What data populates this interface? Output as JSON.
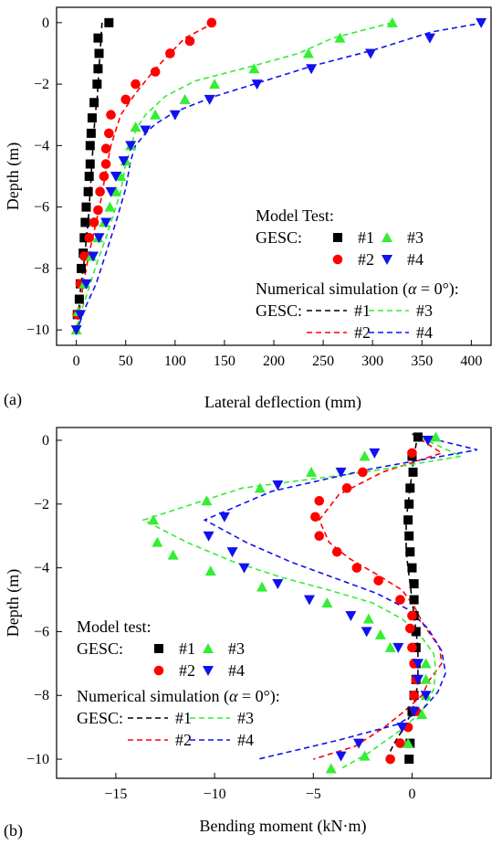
{
  "panels": [
    {
      "panel_label": "(a)",
      "legend": {
        "test_title": "Model Test:",
        "sim_title_prefix": "Numerical simulation (",
        "sim_title_alpha": "α",
        "sim_title_suffix": " = 0°):",
        "row_label": "GESC:",
        "entries": [
          "#1",
          "#2",
          "#3",
          "#4"
        ]
      }
    },
    {
      "panel_label": "(b)",
      "legend": {
        "test_title": "Model test:",
        "sim_title_prefix": "Numerical simulation (",
        "sim_title_alpha": "α",
        "sim_title_suffix": " = 0°):",
        "row_label": "GESC:",
        "entries": [
          "#1",
          "#2",
          "#3",
          "#4"
        ]
      }
    }
  ],
  "series_colors": {
    "#1": "#000000",
    "#2": "#ff0000",
    "#3": "#33ee33",
    "#4": "#1111ee"
  },
  "series_markers": {
    "#1": "square",
    "#2": "circle",
    "#3": "triangle-up",
    "#4": "triangle-down"
  },
  "chart_data": [
    {
      "type": "scatter",
      "title": "",
      "xlabel": "Lateral deflection (mm)",
      "ylabel": "Depth (m)",
      "xlim": [
        -20,
        420
      ],
      "ylim": [
        -10.5,
        0.5
      ],
      "xticks": [
        0,
        50,
        100,
        150,
        200,
        250,
        300,
        350,
        400
      ],
      "yticks": [
        0,
        -2,
        -4,
        -6,
        -8,
        -10
      ],
      "grid": false,
      "legend_position": "bottom-right",
      "test_series": [
        {
          "name": "#1",
          "x": [
            33,
            22,
            23,
            22,
            21,
            18,
            16,
            15,
            14,
            14,
            13,
            12,
            10,
            9,
            8,
            7,
            5,
            4,
            3,
            1
          ],
          "y": [
            0,
            -0.5,
            -1,
            -1.5,
            -2,
            -2.6,
            -3.1,
            -3.6,
            -4,
            -4.6,
            -5,
            -5.5,
            -6,
            -6.5,
            -7,
            -7.5,
            -8,
            -8.5,
            -9,
            -9.5
          ]
        },
        {
          "name": "#2",
          "x": [
            137,
            115,
            95,
            80,
            60,
            50,
            35,
            33,
            30,
            30,
            28,
            24,
            22,
            18,
            13,
            8,
            4,
            1
          ],
          "y": [
            0,
            -0.6,
            -1,
            -1.6,
            -2,
            -2.5,
            -3,
            -3.6,
            -4.1,
            -4.6,
            -5,
            -5.5,
            -6.1,
            -6.5,
            -7,
            -7.6,
            -8.5,
            -9.5
          ]
        },
        {
          "name": "#3",
          "x": [
            320,
            267,
            235,
            180,
            140,
            110,
            80,
            60,
            55,
            50,
            45,
            40,
            34,
            28,
            22,
            15,
            8,
            2,
            0
          ],
          "y": [
            0,
            -0.5,
            -1,
            -1.5,
            -2,
            -2.5,
            -3,
            -3.4,
            -4,
            -4.5,
            -5,
            -5.5,
            -6,
            -6.5,
            -7,
            -7.6,
            -8.5,
            -9.4,
            -10
          ]
        },
        {
          "name": "#4",
          "x": [
            410,
            358,
            298,
            238,
            183,
            135,
            100,
            70,
            55,
            48,
            40,
            35,
            30,
            23,
            17,
            10,
            4,
            0
          ],
          "y": [
            0,
            -0.5,
            -1,
            -1.5,
            -2,
            -2.5,
            -3,
            -3.5,
            -4,
            -4.5,
            -5,
            -5.5,
            -6.5,
            -7,
            -7.6,
            -8.5,
            -9.5,
            -10
          ]
        }
      ],
      "simulation_series": [
        {
          "name": "#1",
          "x": [
            26,
            25,
            24,
            23,
            22,
            21,
            19,
            18,
            17,
            16,
            15,
            14,
            12,
            10,
            9,
            7,
            5,
            3,
            2
          ],
          "y": [
            0,
            -0.5,
            -1,
            -1.5,
            -2,
            -2.5,
            -3,
            -3.5,
            -4,
            -4.5,
            -5,
            -5.5,
            -6.5,
            -7,
            -7.5,
            -8,
            -8.5,
            -9,
            -10
          ]
        },
        {
          "name": "#2",
          "x": [
            140,
            110,
            80,
            60,
            45,
            40,
            35,
            32,
            29,
            26,
            20,
            13,
            7,
            3,
            0
          ],
          "y": [
            0,
            -0.5,
            -1.5,
            -2.3,
            -3,
            -3.5,
            -4,
            -4.5,
            -5,
            -5.6,
            -6.5,
            -7.5,
            -8.5,
            -9.4,
            -10
          ]
        },
        {
          "name": "#3",
          "x": [
            320,
            260,
            225,
            180,
            120,
            90,
            70,
            60,
            55,
            50,
            45,
            40,
            30,
            20,
            10,
            3,
            0
          ],
          "y": [
            0,
            -0.5,
            -1,
            -1.4,
            -1.9,
            -2.4,
            -3,
            -3.5,
            -4.1,
            -4.6,
            -5.5,
            -6,
            -7,
            -7.9,
            -8.9,
            -9.6,
            -10
          ]
        },
        {
          "name": "#4",
          "x": [
            413,
            360,
            300,
            240,
            180,
            140,
            100,
            80,
            70,
            60,
            55,
            50,
            40,
            30,
            20,
            10,
            3,
            0
          ],
          "y": [
            0,
            -0.3,
            -0.9,
            -1.4,
            -2,
            -2.4,
            -2.9,
            -3.3,
            -3.6,
            -4,
            -4.5,
            -5.4,
            -6.5,
            -7.5,
            -8.5,
            -9.2,
            -9.8,
            -10
          ]
        }
      ]
    },
    {
      "type": "scatter",
      "title": "",
      "xlabel": "Bending moment (kN·m)",
      "ylabel": "Depth (m)",
      "xlim": [
        -18,
        4
      ],
      "ylim": [
        -10.6,
        0.4
      ],
      "xticks": [
        -15,
        -10,
        -5,
        0
      ],
      "yticks": [
        0,
        -2,
        -4,
        -6,
        -8,
        -10
      ],
      "grid": false,
      "legend_position": "bottom-left",
      "test_series": [
        {
          "name": "#1",
          "x": [
            0.3,
            0,
            0.05,
            -0.1,
            -0.15,
            -0.2,
            -0.15,
            -0.1,
            0,
            0.1,
            0.1,
            0.1,
            0.2,
            0.2,
            0.2,
            0.2,
            0.1,
            0,
            -0.1,
            -0.15
          ],
          "y": [
            0.1,
            -0.5,
            -1,
            -1.5,
            -2,
            -2.5,
            -3,
            -3.5,
            -4,
            -4.5,
            -5,
            -5.5,
            -6,
            -6.5,
            -7,
            -7.5,
            -8,
            -8.5,
            -9.5,
            -10
          ]
        },
        {
          "name": "#2",
          "x": [
            0,
            -2.5,
            -3.3,
            -4.7,
            -4.9,
            -4.7,
            -3.8,
            -2.8,
            -1.7,
            -0.6,
            0,
            -0.1,
            0,
            0.1,
            0.2,
            0.1,
            0.2,
            -0.2,
            -0.6,
            -1.1
          ],
          "y": [
            -0.4,
            -1,
            -1.5,
            -1.9,
            -2.4,
            -3,
            -3.5,
            -4,
            -4.4,
            -5,
            -5.5,
            -5.9,
            -6.5,
            -7,
            -7.5,
            -8,
            -8.5,
            -9,
            -9.5,
            -10
          ]
        },
        {
          "name": "#3",
          "x": [
            1.2,
            -2.4,
            -5.1,
            -7.7,
            -10.4,
            -13.1,
            -12.9,
            -12.1,
            -10.2,
            -7.6,
            -4.3,
            -2.2,
            -1.6,
            -1.1,
            0.7,
            0.7,
            0.7,
            0.5,
            -0.2,
            -2.4,
            -4.1
          ],
          "y": [
            0.1,
            -0.5,
            -1,
            -1.5,
            -1.9,
            -2.5,
            -3.2,
            -3.6,
            -4.1,
            -4.6,
            -5.1,
            -5.6,
            -6.1,
            -6.5,
            -7,
            -7.5,
            -8,
            -8.6,
            -9.5,
            -9.9,
            -10.3
          ]
        },
        {
          "name": "#4",
          "x": [
            0.8,
            -1.9,
            -3.6,
            -6.8,
            -9.5,
            -10.3,
            -9.1,
            -8.5,
            -6.8,
            -5.2,
            -3.1,
            -2.3,
            -0.7,
            0.3,
            0.3,
            0.7,
            0.1,
            -0.5,
            -2.7,
            -3.6
          ],
          "y": [
            0,
            -0.4,
            -1,
            -1.4,
            -2.4,
            -3,
            -3.5,
            -4,
            -4.5,
            -5,
            -5.5,
            -6,
            -6.5,
            -7,
            -7.5,
            -8,
            -8.5,
            -9,
            -9.5,
            -9.9
          ]
        }
      ],
      "simulation_series": [
        {
          "name": "#1",
          "x": [
            0.3,
            0.1,
            0,
            -0.1,
            -0.2,
            -0.3,
            -0.3,
            -0.3,
            -0.2,
            -0.1,
            0,
            0.1,
            0.2,
            0.3,
            0.3,
            0.3,
            0.2,
            0,
            -0.4,
            -0.9,
            -1.3
          ],
          "y": [
            0.2,
            -0.5,
            -1,
            -1.5,
            -2,
            -2.5,
            -3,
            -3.5,
            -4,
            -4.5,
            -5,
            -5.5,
            -6,
            -6.5,
            -7,
            -7.5,
            -8,
            -8.5,
            -9,
            -9.5,
            -10
          ]
        },
        {
          "name": "#2",
          "x": [
            0,
            1.5,
            -1.5,
            -3.7,
            -4.7,
            -4.2,
            -3.2,
            -1.8,
            -0.5,
            0.1,
            0.6,
            1.4,
            1.5,
            0.9,
            0.5,
            -0.4,
            -1.4,
            -2.9,
            -5
          ],
          "y": [
            0.2,
            -0.4,
            -1,
            -1.7,
            -2.5,
            -3.2,
            -3.7,
            -4.2,
            -4.7,
            -5.2,
            -5.8,
            -6.5,
            -7,
            -7.5,
            -8,
            -8.5,
            -9,
            -9.6,
            -10
          ]
        },
        {
          "name": "#3",
          "x": [
            0,
            2.5,
            -2.4,
            -8.6,
            -13.6,
            -11.4,
            -9.1,
            -6.6,
            -4.2,
            -2,
            -0.5,
            0.4,
            1.1,
            1.2,
            1.1,
            0.5,
            -0.6,
            -2.2,
            -3.6
          ],
          "y": [
            0.2,
            -0.5,
            -1,
            -1.5,
            -2.5,
            -3.2,
            -3.8,
            -4.3,
            -4.7,
            -5.1,
            -5.6,
            -6.1,
            -6.7,
            -7.2,
            -7.8,
            -8.5,
            -9.1,
            -9.8,
            -10.3
          ]
        },
        {
          "name": "#4",
          "x": [
            0,
            3.3,
            -2.1,
            -7.1,
            -10.5,
            -8.4,
            -6.2,
            -4,
            -1.8,
            -0.2,
            0.8,
            1.5,
            1.7,
            1.3,
            0.6,
            -0.7,
            -3.7,
            -7.8
          ],
          "y": [
            0.2,
            -0.3,
            -0.9,
            -1.6,
            -2.5,
            -3.2,
            -3.8,
            -4.3,
            -4.8,
            -5.3,
            -5.9,
            -6.6,
            -7.3,
            -7.9,
            -8.4,
            -8.9,
            -9.4,
            -10
          ]
        }
      ]
    }
  ]
}
